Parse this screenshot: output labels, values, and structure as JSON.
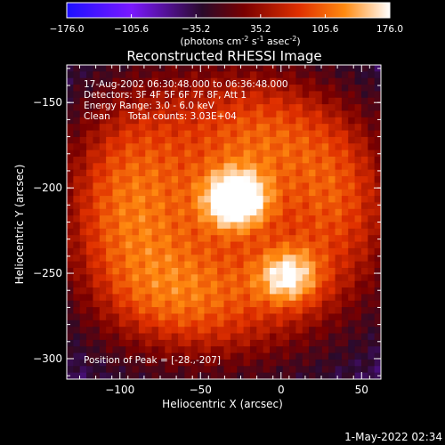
{
  "colorbar": {
    "ticks": [
      "-176.0",
      "-105.6",
      "-35.2",
      "35.2",
      "105.6",
      "176.0"
    ],
    "unit_label": "(photons cm",
    "unit_exp1": "-2",
    "unit_mid": " s",
    "unit_exp2": "-1",
    "unit_mid2": " asec",
    "unit_exp3": "-2",
    "unit_end": ")",
    "range": [
      -176.0,
      176.0
    ],
    "colormap_stops": [
      "#1c10ff",
      "#7a18ff",
      "#2a0a2a",
      "#7a0000",
      "#e03000",
      "#ff8a10",
      "#ffffff"
    ]
  },
  "chart_data": {
    "type": "heatmap",
    "title": "Reconstructed RHESSI Image",
    "xlabel": "Heliocentric X (arcsec)",
    "ylabel": "Heliocentric Y (arcsec)",
    "xlim": [
      -133,
      62
    ],
    "ylim": [
      -312,
      -128
    ],
    "xticks": [
      -100,
      -50,
      0,
      50
    ],
    "yticks": [
      -150,
      -200,
      -250,
      -300
    ],
    "xtick_labels": [
      "−100",
      "−50",
      "0",
      "50"
    ],
    "ytick_labels": [
      "−150",
      "−200",
      "−250",
      "−300"
    ],
    "annotations": [
      "17-Aug-2002 06:30:48.000 to 06:36:48.000",
      "Detectors: 3F 4F 5F 6F 7F 8F, Att 1",
      "Energy Range: 3.0 - 6.0 keV",
      "Clean      Total counts: 3.03E+04"
    ],
    "peak_label": "Position of Peak = [-28.,-207]",
    "peak": [
      -28,
      -207
    ],
    "sources": [
      {
        "x": -28,
        "y": -207,
        "sx": 14,
        "sy": 12,
        "amp": 176
      },
      {
        "x": 5,
        "y": -252,
        "sx": 14,
        "sy": 12,
        "amp": 120
      },
      {
        "x": -95,
        "y": -210,
        "sx": 28,
        "sy": 45,
        "amp": 70
      },
      {
        "x": -10,
        "y": -170,
        "sx": 30,
        "sy": 22,
        "amp": 55
      },
      {
        "x": -55,
        "y": -265,
        "sx": 35,
        "sy": 22,
        "amp": 60
      },
      {
        "x": 35,
        "y": -205,
        "sx": 20,
        "sy": 30,
        "amp": 50
      }
    ]
  },
  "timestamp": "1-May-2022 02:34"
}
